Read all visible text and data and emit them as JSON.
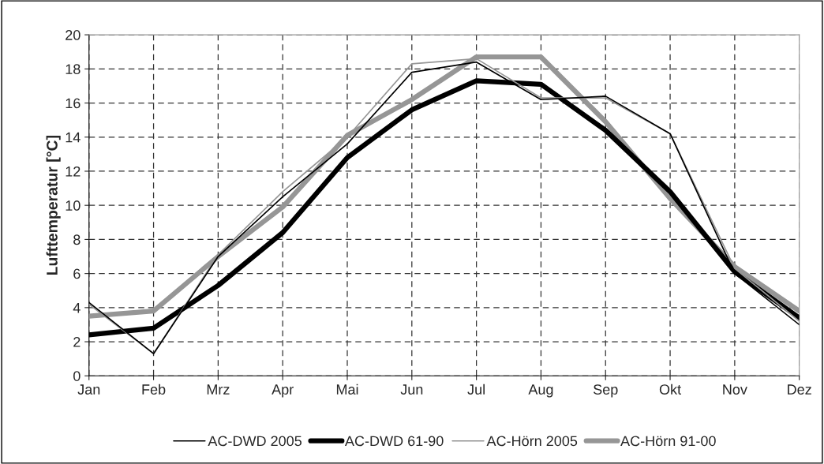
{
  "chart_data": {
    "type": "line",
    "ylabel": "Lufttemperatur [°C]",
    "categories": [
      "Jan",
      "Feb",
      "Mrz",
      "Apr",
      "Mai",
      "Jun",
      "Jul",
      "Aug",
      "Sep",
      "Okt",
      "Nov",
      "Dez"
    ],
    "series": [
      {
        "name": "AC-DWD 2005",
        "color": "#000000",
        "values": [
          4.3,
          1.3,
          7.0,
          10.5,
          13.6,
          17.8,
          18.4,
          16.2,
          16.4,
          14.2,
          6.0,
          3.0
        ]
      },
      {
        "name": "AC-DWD 61-90",
        "color": "#000000",
        "values": [
          2.4,
          2.8,
          5.3,
          8.4,
          12.8,
          15.6,
          17.3,
          17.1,
          14.4,
          10.8,
          6.1,
          3.4
        ]
      },
      {
        "name": "AC-Hörn 2005",
        "color": "#969696",
        "values": [
          4.2,
          1.3,
          7.1,
          10.8,
          14.0,
          18.3,
          18.6,
          16.3,
          16.3,
          14.2,
          6.3,
          3.2
        ]
      },
      {
        "name": "AC-Hörn 91-00",
        "color": "#969696",
        "values": [
          3.5,
          3.8,
          7.0,
          9.9,
          14.1,
          16.2,
          18.7,
          18.7,
          14.9,
          10.4,
          6.4,
          3.8
        ]
      }
    ],
    "ylim": [
      0,
      20
    ],
    "yticks": [
      0,
      2,
      4,
      6,
      8,
      10,
      12,
      14,
      16,
      18,
      20
    ],
    "grid": true,
    "legend": "bottom",
    "line_style": "solid",
    "marker": "none"
  }
}
